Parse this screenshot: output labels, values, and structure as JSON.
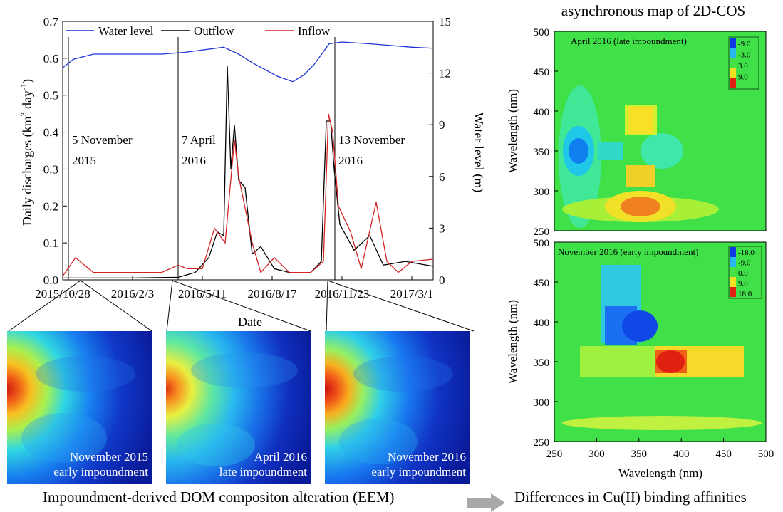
{
  "chart_data": [
    {
      "type": "line",
      "xlabel": "Date",
      "ylabel_left": "Daily discharges (km3 day-1)",
      "ylabel_right": "Water level (m)",
      "x_ticks": [
        "2015/10/28",
        "2016/2/3",
        "2016/5/11",
        "2016/8/17",
        "2016/11/23",
        "2017/3/1"
      ],
      "y_left_ticks": [
        "0.0",
        "0.1",
        "0.2",
        "0.3",
        "0.4",
        "0.5",
        "0.6",
        "0.7"
      ],
      "y_right_ticks": [
        "0",
        "3",
        "6",
        "9",
        "12",
        "15"
      ],
      "ylim_left": [
        0,
        0.7
      ],
      "ylim_right": [
        0,
        15
      ],
      "legend_position": "top",
      "series": [
        {
          "name": "Water level",
          "axis": "right",
          "color": "#1f33d6",
          "x": [
            "2015/10/28",
            "2015/11/12",
            "2015/12/10",
            "2016/2/3",
            "2016/3/15",
            "2016/4/15",
            "2016/6/10",
            "2016/7/1",
            "2016/7/20",
            "2016/8/25",
            "2016/9/15",
            "2016/10/1",
            "2016/10/15",
            "2016/11/5",
            "2016/11/23",
            "2017/1/1",
            "2017/3/1",
            "2017/4/20"
          ],
          "y": [
            12.3,
            12.8,
            13.1,
            13.1,
            13.1,
            13.2,
            13.5,
            13.1,
            12.6,
            11.8,
            11.5,
            11.9,
            12.5,
            13.7,
            13.8,
            13.7,
            13.5,
            13.4
          ]
        },
        {
          "name": "Outflow",
          "axis": "left",
          "color": "#000000",
          "x": [
            "2015/10/28",
            "2015/12/1",
            "2016/2/3",
            "2016/4/7",
            "2016/5/1",
            "2016/5/20",
            "2016/6/1",
            "2016/6/10",
            "2016/6/15",
            "2016/6/20",
            "2016/6/25",
            "2016/7/1",
            "2016/7/10",
            "2016/7/20",
            "2016/8/1",
            "2016/8/20",
            "2016/9/10",
            "2016/10/10",
            "2016/10/25",
            "2016/11/1",
            "2016/11/7",
            "2016/11/12",
            "2016/11/20",
            "2016/12/10",
            "2017/1/1",
            "2017/1/20",
            "2017/2/20",
            "2017/4/20"
          ],
          "y": [
            0.005,
            0.005,
            0.005,
            0.007,
            0.02,
            0.06,
            0.13,
            0.12,
            0.58,
            0.3,
            0.42,
            0.27,
            0.25,
            0.07,
            0.09,
            0.03,
            0.02,
            0.02,
            0.05,
            0.43,
            0.43,
            0.3,
            0.15,
            0.08,
            0.12,
            0.04,
            0.05,
            0.03
          ]
        },
        {
          "name": "Inflow",
          "axis": "left",
          "color": "#d42424",
          "x": [
            "2015/10/28",
            "2015/11/15",
            "2015/12/10",
            "2016/2/3",
            "2016/3/15",
            "2016/4/7",
            "2016/4/20",
            "2016/5/11",
            "2016/5/28",
            "2016/6/12",
            "2016/6/25",
            "2016/7/1",
            "2016/7/20",
            "2016/8/1",
            "2016/8/20",
            "2016/9/10",
            "2016/10/10",
            "2016/10/28",
            "2016/11/4",
            "2016/11/10",
            "2016/11/18",
            "2016/12/5",
            "2016/12/20",
            "2017/1/10",
            "2017/1/25",
            "2017/2/10",
            "2017/3/1",
            "2017/4/20"
          ],
          "y": [
            0.01,
            0.06,
            0.02,
            0.02,
            0.02,
            0.04,
            0.03,
            0.03,
            0.14,
            0.1,
            0.38,
            0.28,
            0.1,
            0.02,
            0.06,
            0.02,
            0.02,
            0.05,
            0.45,
            0.4,
            0.2,
            0.13,
            0.03,
            0.21,
            0.05,
            0.02,
            0.05,
            0.06
          ]
        }
      ],
      "annotations": [
        {
          "line1": "5 November",
          "line2": "2015",
          "x": "2015/11/5"
        },
        {
          "line1": "7 April",
          "line2": "2016",
          "x": "2016/4/7"
        },
        {
          "line1": "13 November",
          "line2": "2016",
          "x": "2016/11/13"
        }
      ]
    },
    {
      "type": "heatmap",
      "title": "asynchronous map of 2D-COS",
      "panel_label": "April 2016 (late impoundment)",
      "ylabel": "Wavelength (nm)",
      "ylim": [
        250,
        500
      ],
      "y_ticks": [
        "250",
        "300",
        "350",
        "400",
        "450",
        "500"
      ],
      "colorbar_ticks": [
        "-9.0",
        "-3.0",
        "3.0",
        "9.0"
      ]
    },
    {
      "type": "heatmap",
      "panel_label": "November 2016 (early impoundment)",
      "xlabel": "Wavelength (nm)",
      "ylabel": "Wavelength (nm)",
      "xlim": [
        250,
        500
      ],
      "ylim": [
        250,
        500
      ],
      "x_ticks": [
        "250",
        "300",
        "350",
        "400",
        "450",
        "500"
      ],
      "y_ticks": [
        "250",
        "300",
        "350",
        "400",
        "450",
        "500"
      ],
      "colorbar_ticks": [
        "-18.0",
        "-9.0",
        "0.0",
        "9.0",
        "18.0"
      ]
    }
  ],
  "eem_panels": [
    {
      "line1": "November 2015",
      "line2": "early impoundment"
    },
    {
      "line1": "April 2016",
      "line2": "late impoundment"
    },
    {
      "line1": "November 2016",
      "line2": "early impoundment"
    }
  ],
  "bottom": {
    "left": "Impoundment-derived DOM compositon alteration (EEM)",
    "right": "Differences in Cu(II) binding affinities"
  }
}
